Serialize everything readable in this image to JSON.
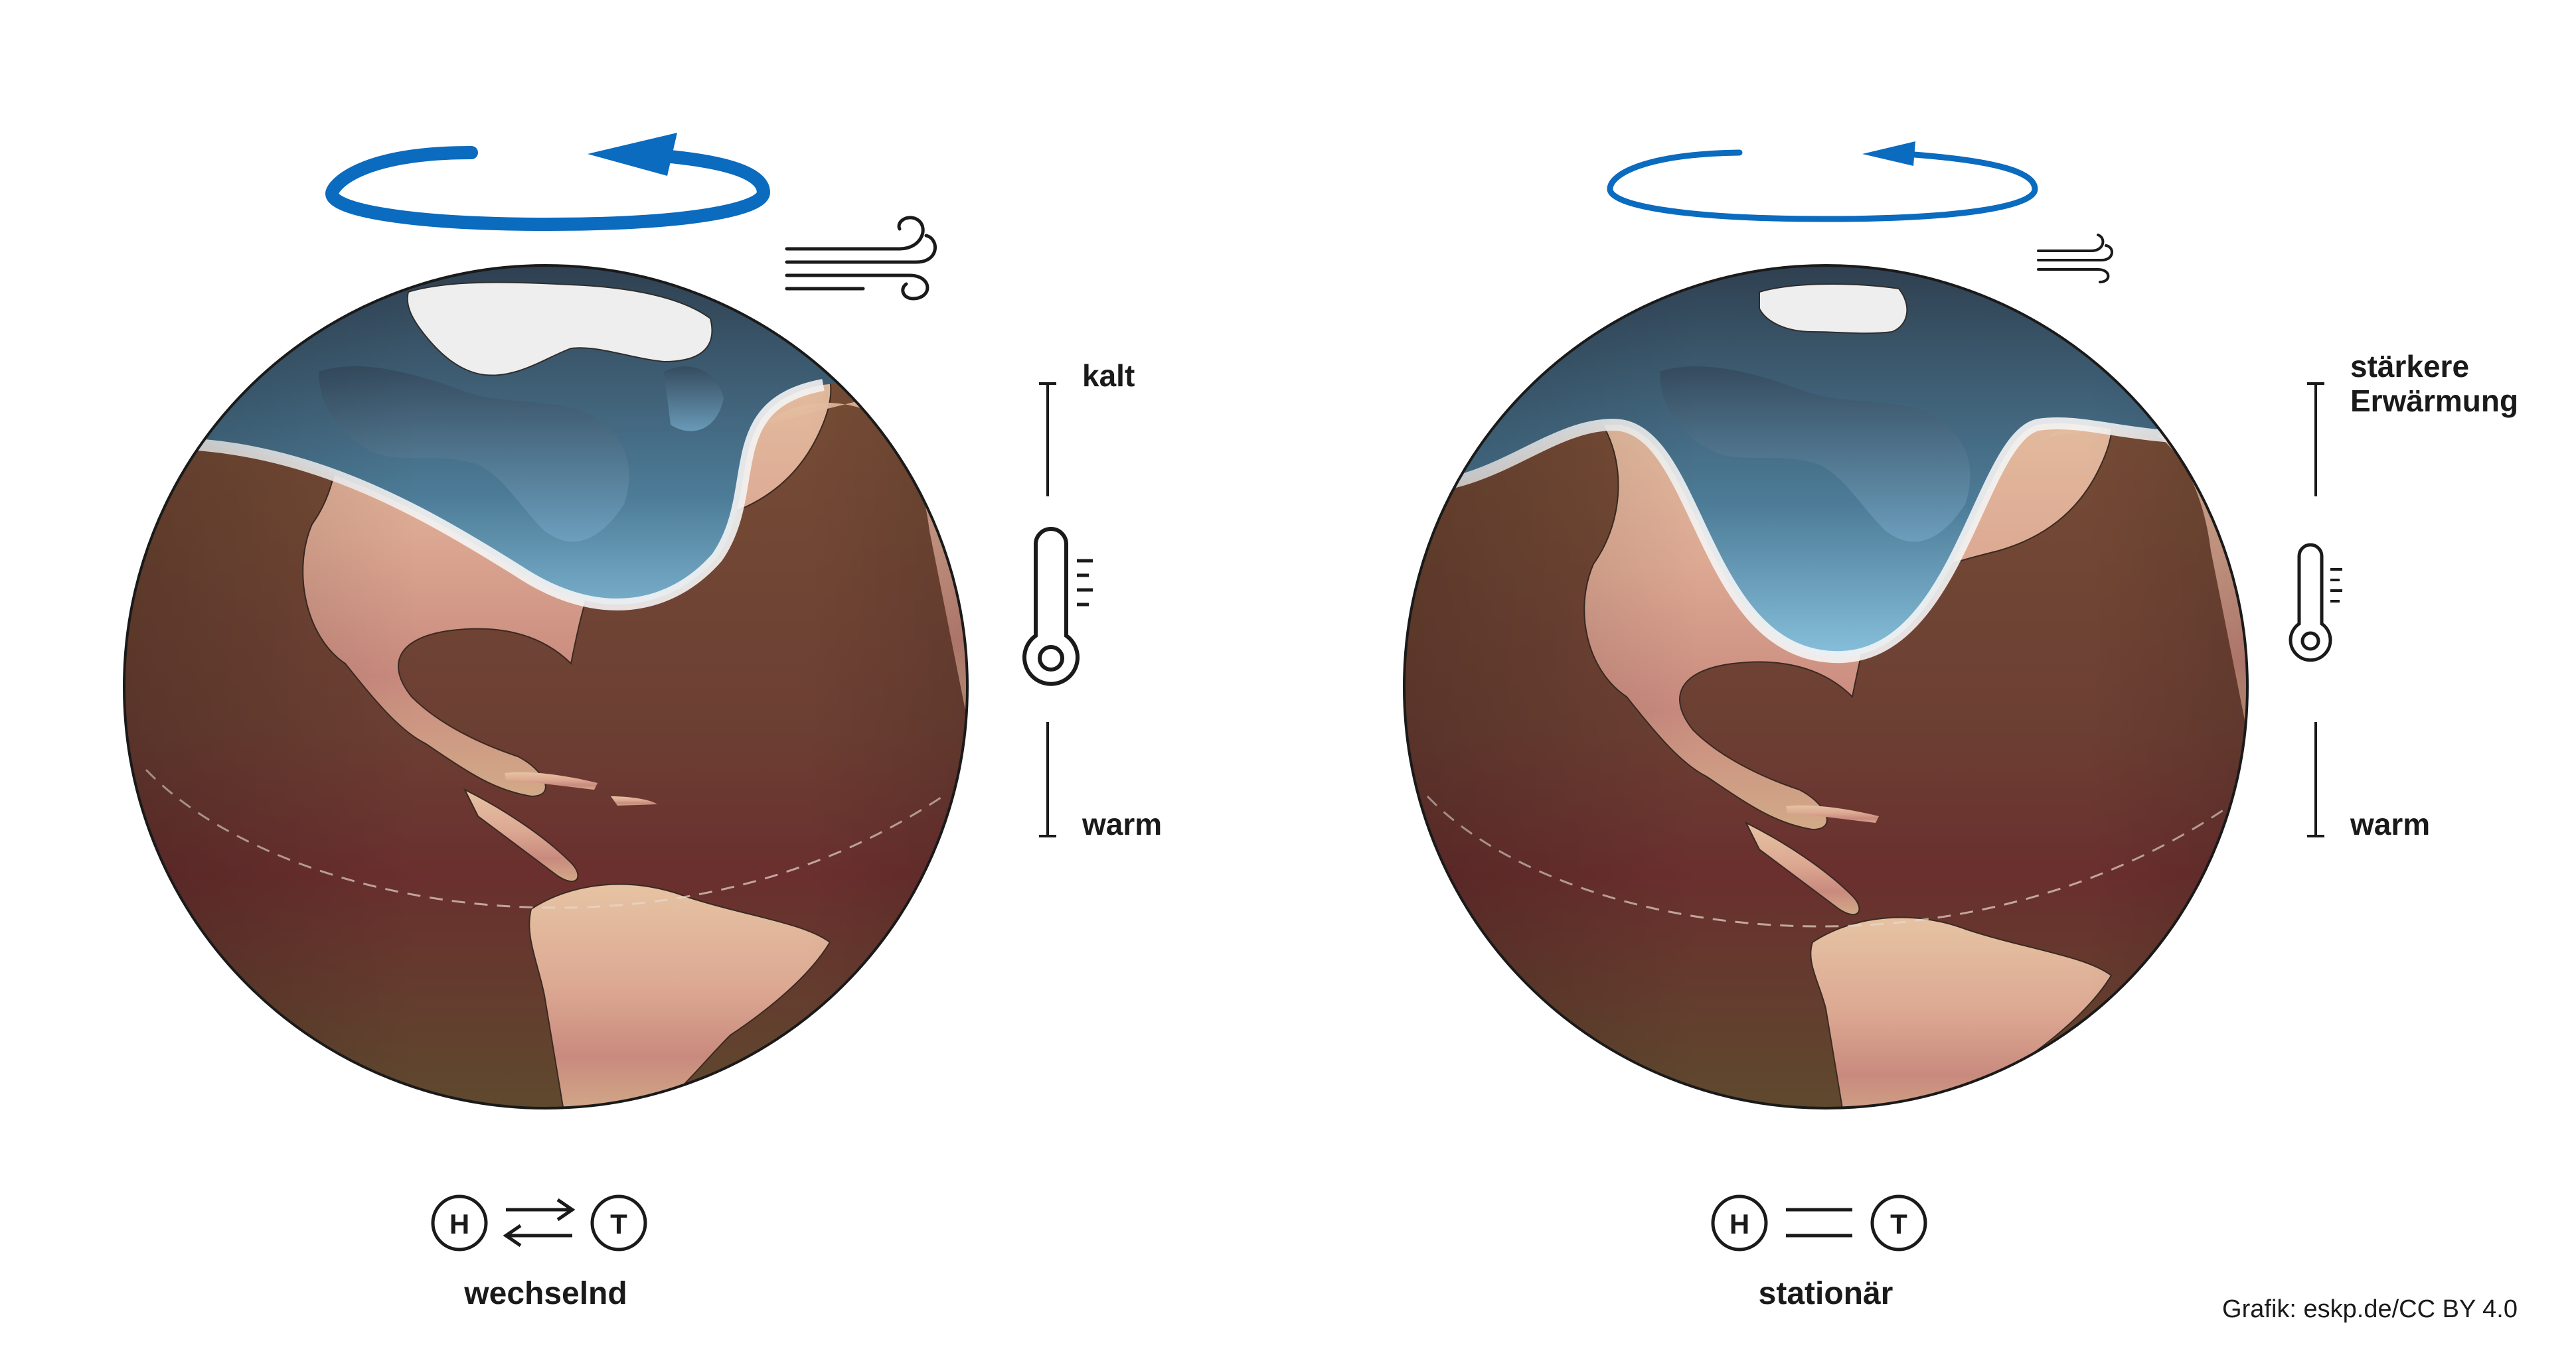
{
  "panels": [
    {
      "id": "left",
      "caption": "wechselnd",
      "scale_top": "kalt",
      "scale_bottom": "warm",
      "high_letter": "H",
      "low_letter": "T",
      "relation_icon": "double-arrow-exchange-icon",
      "rotation_icon": "rotation-arrow-icon-strong",
      "wind_icon": "wind-icon-strong"
    },
    {
      "id": "right",
      "caption": "stationär",
      "scale_top_line1": "stärkere",
      "scale_top_line2": "Erwärmung",
      "scale_bottom": "warm",
      "high_letter": "H",
      "low_letter": "T",
      "relation_icon": "double-line-stationary-icon",
      "rotation_icon": "rotation-arrow-icon-weak",
      "wind_icon": "wind-icon-weak"
    }
  ],
  "credit": "Grafik: eskp.de/CC BY 4.0",
  "colors": {
    "arrow_blue": "#0a6bbf",
    "cold_air": "#3b5a70",
    "cold_air_light": "#8fc4de",
    "warm_ocean": "#6e4a35",
    "warm_land": "#e2b59a",
    "jet_stream": "#f4f4f4"
  }
}
